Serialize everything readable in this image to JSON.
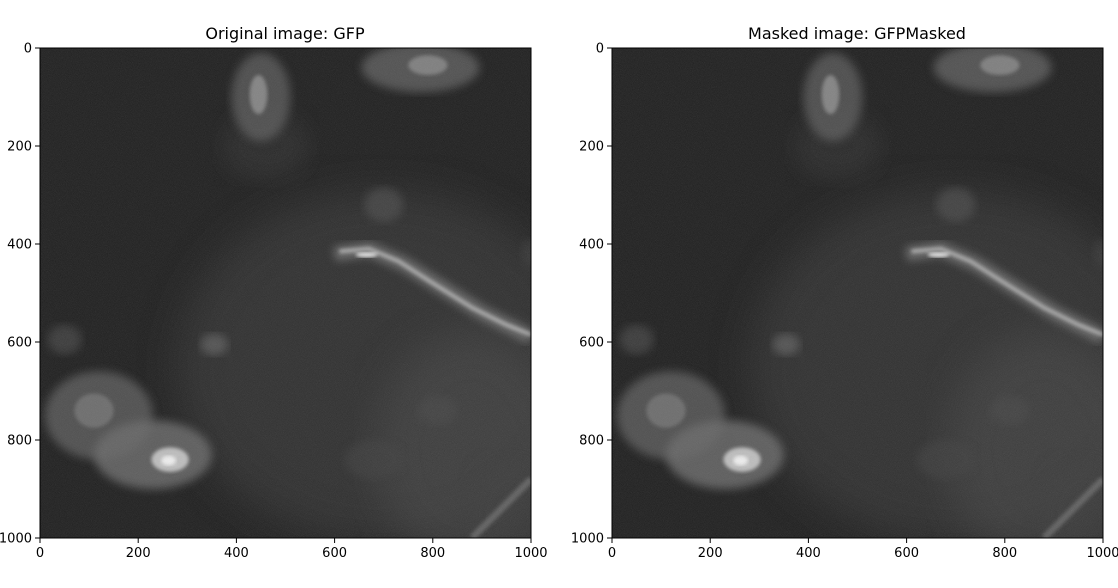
{
  "figure": {
    "panels": [
      {
        "title": "Original image: GFP",
        "x_ticks": [
          "0",
          "200",
          "400",
          "600",
          "800",
          "1000"
        ],
        "y_ticks": [
          "0",
          "200",
          "400",
          "600",
          "800",
          "1000"
        ]
      },
      {
        "title": "Masked image: GFPMasked",
        "x_ticks": [
          "0",
          "200",
          "400",
          "600",
          "800",
          "1000"
        ],
        "y_ticks": [
          "0",
          "200",
          "400",
          "600",
          "800",
          "1000"
        ]
      }
    ],
    "colors": {
      "background": "#ffffff",
      "image_dark": "#1c1c1c",
      "image_bright": "#f2f2f2",
      "axis": "#000000"
    }
  }
}
